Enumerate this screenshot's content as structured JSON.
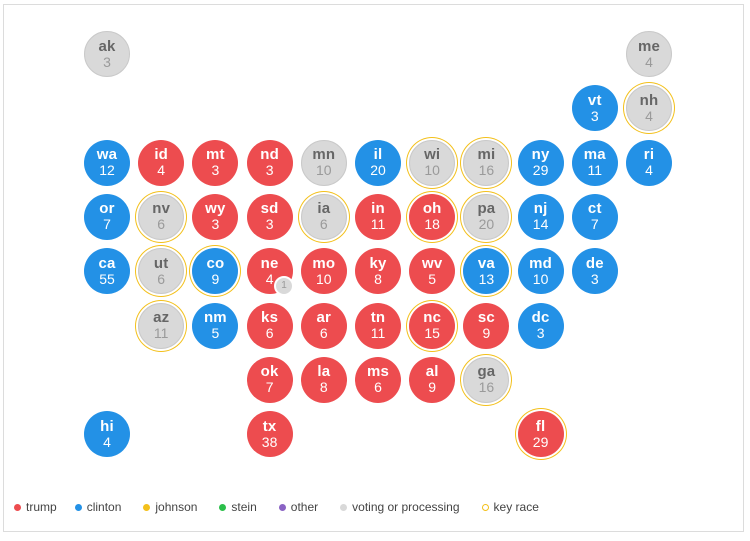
{
  "colors": {
    "trump": "#ed4c4f",
    "clinton": "#2391e6",
    "johnson": "#f3c01b",
    "stein": "#2bbf4a",
    "other": "#8a63c4",
    "voting": "#d9d9d9",
    "key_race": "#f3c01b"
  },
  "states": [
    {
      "abbr": "ak",
      "ev": "3",
      "status": "voting",
      "key": false
    },
    {
      "abbr": "me",
      "ev": "4",
      "status": "voting",
      "key": false
    },
    {
      "abbr": "vt",
      "ev": "3",
      "status": "clinton",
      "key": false
    },
    {
      "abbr": "nh",
      "ev": "4",
      "status": "voting",
      "key": true
    },
    {
      "abbr": "wa",
      "ev": "12",
      "status": "clinton",
      "key": false
    },
    {
      "abbr": "id",
      "ev": "4",
      "status": "trump",
      "key": false
    },
    {
      "abbr": "mt",
      "ev": "3",
      "status": "trump",
      "key": false
    },
    {
      "abbr": "nd",
      "ev": "3",
      "status": "trump",
      "key": false
    },
    {
      "abbr": "mn",
      "ev": "10",
      "status": "voting",
      "key": false
    },
    {
      "abbr": "il",
      "ev": "20",
      "status": "clinton",
      "key": false
    },
    {
      "abbr": "wi",
      "ev": "10",
      "status": "voting",
      "key": true
    },
    {
      "abbr": "mi",
      "ev": "16",
      "status": "voting",
      "key": true
    },
    {
      "abbr": "ny",
      "ev": "29",
      "status": "clinton",
      "key": false
    },
    {
      "abbr": "ma",
      "ev": "11",
      "status": "clinton",
      "key": false
    },
    {
      "abbr": "ri",
      "ev": "4",
      "status": "clinton",
      "key": false
    },
    {
      "abbr": "or",
      "ev": "7",
      "status": "clinton",
      "key": false
    },
    {
      "abbr": "nv",
      "ev": "6",
      "status": "voting",
      "key": true
    },
    {
      "abbr": "wy",
      "ev": "3",
      "status": "trump",
      "key": false
    },
    {
      "abbr": "sd",
      "ev": "3",
      "status": "trump",
      "key": false
    },
    {
      "abbr": "ia",
      "ev": "6",
      "status": "voting",
      "key": true
    },
    {
      "abbr": "in",
      "ev": "11",
      "status": "trump",
      "key": false
    },
    {
      "abbr": "oh",
      "ev": "18",
      "status": "trump",
      "key": true
    },
    {
      "abbr": "pa",
      "ev": "20",
      "status": "voting",
      "key": true
    },
    {
      "abbr": "nj",
      "ev": "14",
      "status": "clinton",
      "key": false
    },
    {
      "abbr": "ct",
      "ev": "7",
      "status": "clinton",
      "key": false
    },
    {
      "abbr": "ca",
      "ev": "55",
      "status": "clinton",
      "key": false
    },
    {
      "abbr": "ut",
      "ev": "6",
      "status": "voting",
      "key": true
    },
    {
      "abbr": "co",
      "ev": "9",
      "status": "clinton",
      "key": true
    },
    {
      "abbr": "ne",
      "ev": "4",
      "status": "trump",
      "key": false
    },
    {
      "abbr": "mo",
      "ev": "10",
      "status": "trump",
      "key": false
    },
    {
      "abbr": "ky",
      "ev": "8",
      "status": "trump",
      "key": false
    },
    {
      "abbr": "wv",
      "ev": "5",
      "status": "trump",
      "key": false
    },
    {
      "abbr": "va",
      "ev": "13",
      "status": "clinton",
      "key": true
    },
    {
      "abbr": "md",
      "ev": "10",
      "status": "clinton",
      "key": false
    },
    {
      "abbr": "de",
      "ev": "3",
      "status": "clinton",
      "key": false
    },
    {
      "abbr": "az",
      "ev": "11",
      "status": "voting",
      "key": true
    },
    {
      "abbr": "nm",
      "ev": "5",
      "status": "clinton",
      "key": false
    },
    {
      "abbr": "ks",
      "ev": "6",
      "status": "trump",
      "key": false
    },
    {
      "abbr": "ar",
      "ev": "6",
      "status": "trump",
      "key": false
    },
    {
      "abbr": "tn",
      "ev": "11",
      "status": "trump",
      "key": false
    },
    {
      "abbr": "nc",
      "ev": "15",
      "status": "trump",
      "key": true
    },
    {
      "abbr": "sc",
      "ev": "9",
      "status": "trump",
      "key": false
    },
    {
      "abbr": "dc",
      "ev": "3",
      "status": "clinton",
      "key": false
    },
    {
      "abbr": "ok",
      "ev": "7",
      "status": "trump",
      "key": false
    },
    {
      "abbr": "la",
      "ev": "8",
      "status": "trump",
      "key": false
    },
    {
      "abbr": "ms",
      "ev": "6",
      "status": "trump",
      "key": false
    },
    {
      "abbr": "al",
      "ev": "9",
      "status": "trump",
      "key": false
    },
    {
      "abbr": "ga",
      "ev": "16",
      "status": "voting",
      "key": true
    },
    {
      "abbr": "hi",
      "ev": "4",
      "status": "clinton",
      "key": false
    },
    {
      "abbr": "tx",
      "ev": "38",
      "status": "trump",
      "key": false
    },
    {
      "abbr": "fl",
      "ev": "29",
      "status": "trump",
      "key": true
    }
  ],
  "nebraska_split": {
    "ev": "1",
    "status": "voting"
  },
  "legend": [
    {
      "label": "trump",
      "type": "trump"
    },
    {
      "label": "clinton",
      "type": "clinton"
    },
    {
      "label": "johnson",
      "type": "johnson"
    },
    {
      "label": "stein",
      "type": "stein"
    },
    {
      "label": "other",
      "type": "other"
    },
    {
      "label": "voting or processing",
      "type": "voting"
    },
    {
      "label": "key race",
      "type": "key_race"
    }
  ]
}
